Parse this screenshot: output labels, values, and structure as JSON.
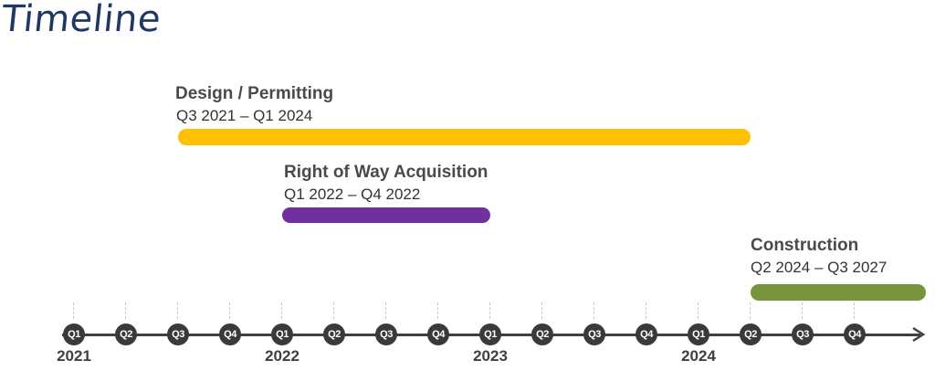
{
  "title": "Timeline",
  "phases": [
    {
      "name": "Design / Permitting",
      "range": "Q3 2021 – Q1 2024",
      "color": "#ffc000",
      "start_index": 2,
      "end_index": 13
    },
    {
      "name": "Right of Way Acquisition",
      "range": "Q1 2022 – Q4 2022",
      "color": "#7030a0",
      "start_index": 4,
      "end_index": 8
    },
    {
      "name": "Construction",
      "range": "Q2 2024 – Q3 2027",
      "color": "#77933c",
      "start_index": 13,
      "end_index": 16.4
    }
  ],
  "axis": {
    "quarters": [
      "Q1",
      "Q2",
      "Q3",
      "Q4",
      "Q1",
      "Q2",
      "Q3",
      "Q4",
      "Q1",
      "Q2",
      "Q3",
      "Q4",
      "Q1",
      "Q2",
      "Q3",
      "Q4"
    ],
    "years": [
      {
        "label": "2021",
        "index": 0
      },
      {
        "label": "2022",
        "index": 4
      },
      {
        "label": "2023",
        "index": 8
      },
      {
        "label": "2024",
        "index": 12
      }
    ]
  }
}
